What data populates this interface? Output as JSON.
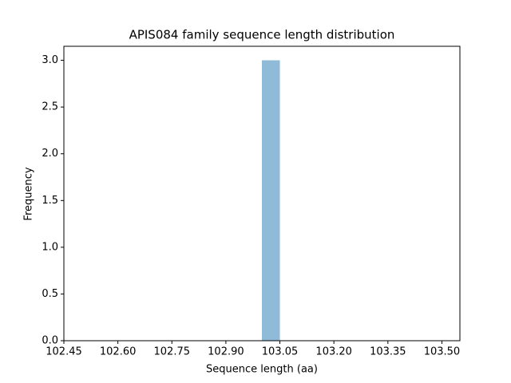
{
  "chart_data": {
    "type": "histogram",
    "title": "APIS084 family sequence length distribution",
    "x_label": "Sequence length (aa)",
    "y_label": "Frequency",
    "bins": [
      102.5,
      102.55,
      102.6,
      102.65,
      102.7,
      102.75,
      102.8,
      102.85,
      102.9,
      102.95,
      103.0,
      103.05,
      103.1,
      103.15,
      103.2,
      103.25,
      103.3,
      103.35,
      103.4,
      103.45,
      103.5
    ],
    "values": [
      0,
      0,
      0,
      0,
      0,
      0,
      0,
      0,
      0,
      0,
      3,
      0,
      0,
      0,
      0,
      0,
      0,
      0,
      0,
      0
    ],
    "color": "#8fbbd9",
    "xlim": [
      102.45,
      103.55
    ],
    "xticks": [
      102.45,
      {
        "value": 102.6,
        "label": "102.60"
      },
      102.75,
      {
        "value": 102.9,
        "label": "102.90"
      },
      103.05,
      {
        "value": 103.2,
        "label": "103.20"
      },
      103.35,
      {
        "value": 103.5,
        "label": "103.50"
      }
    ],
    "ylim": [
      0,
      3.15
    ],
    "yticks": [
      {
        "value": 0,
        "label": "0.0"
      },
      {
        "value": 0.5,
        "label": "0.5"
      },
      {
        "value": 1,
        "label": "1.0"
      },
      {
        "value": 1.5,
        "label": "1.5"
      },
      {
        "value": 2,
        "label": "2.0"
      },
      {
        "value": 2.5,
        "label": "2.5"
      },
      {
        "value": 3,
        "label": "3.0"
      }
    ],
    "grid": false
  }
}
